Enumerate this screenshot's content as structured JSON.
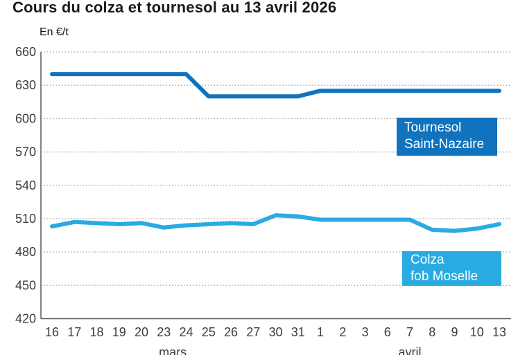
{
  "title": "Cours du colza et tournesol au 13 avril 2026",
  "unit_label": "En €/t",
  "colors": {
    "tournesol": "#1173BD",
    "colza": "#29ABE2",
    "grid": "#ADADAD",
    "axis": "#595959",
    "tick_text": "#3D3D3D",
    "title_text": "#1A1A1A"
  },
  "legend": {
    "tournesol": {
      "line1": "Tournesol",
      "line2": "Saint-Nazaire"
    },
    "colza": {
      "line1": "Colza",
      "line2": "fob Moselle"
    }
  },
  "chart_data": {
    "type": "line",
    "title": "Cours du colza et tournesol au 13 avril 2026",
    "ylabel": "En €/t",
    "ylim": [
      420,
      660
    ],
    "yticks": [
      660,
      630,
      600,
      570,
      540,
      510,
      480,
      450,
      420
    ],
    "grid": "horizontal-dotted",
    "legend_position": "boxes-inside-right",
    "categories": [
      "16",
      "17",
      "18",
      "19",
      "20",
      "23",
      "24",
      "25",
      "26",
      "27",
      "30",
      "31",
      "1",
      "2",
      "3",
      "6",
      "7",
      "8",
      "9",
      "10",
      "13"
    ],
    "months": [
      {
        "label": "mars",
        "center_index": 5.4
      },
      {
        "label": "avril",
        "center_index": 16.0
      }
    ],
    "series": [
      {
        "name": "Tournesol Saint-Nazaire",
        "color": "#1173BD",
        "values": [
          640,
          640,
          640,
          640,
          640,
          640,
          640,
          620,
          620,
          620,
          620,
          620,
          625,
          625,
          625,
          625,
          625,
          625,
          625,
          625,
          625
        ]
      },
      {
        "name": "Colza fob Moselle",
        "color": "#29ABE2",
        "values": [
          503,
          507,
          506,
          505,
          506,
          502,
          504,
          505,
          506,
          505,
          513,
          512,
          509,
          509,
          509,
          509,
          509,
          500,
          499,
          501,
          505
        ]
      }
    ]
  }
}
